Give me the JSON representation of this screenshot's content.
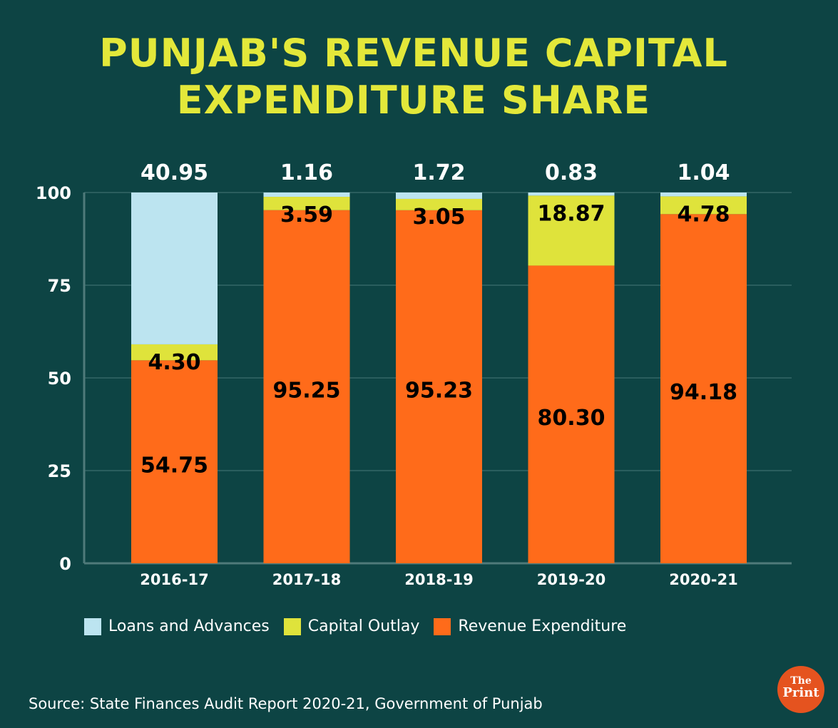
{
  "chart_data": {
    "type": "bar",
    "stacked": true,
    "title": "PUNJAB'S REVENUE CAPITAL EXPENDITURE SHARE",
    "categories": [
      "2016-17",
      "2017-18",
      "2018-19",
      "2019-20",
      "2020-21"
    ],
    "series": [
      {
        "name": "Revenue Expenditure",
        "color": "#ff6b1a",
        "values": [
          54.75,
          95.25,
          95.23,
          80.3,
          94.18
        ],
        "labels": [
          "54.75",
          "95.25",
          "95.23",
          "80.30",
          "94.18"
        ]
      },
      {
        "name": "Capital Outlay",
        "color": "#dfe33b",
        "values": [
          4.3,
          3.59,
          3.05,
          18.87,
          4.78
        ],
        "labels": [
          "4.30",
          "3.59",
          "3.05",
          "18.87",
          "4.78"
        ]
      },
      {
        "name": "Loans and Advances",
        "color": "#bce4f0",
        "values": [
          40.95,
          1.16,
          1.72,
          0.83,
          1.04
        ],
        "labels": [
          "40.95",
          "1.16",
          "1.72",
          "0.83",
          "1.04"
        ]
      }
    ],
    "ylim": [
      0,
      100
    ],
    "yticks": [
      "0",
      "25",
      "50",
      "75",
      "100"
    ],
    "grid": true,
    "legend": "bottom",
    "legend_order": [
      "Loans and Advances",
      "Capital Outlay",
      "Revenue Expenditure"
    ]
  },
  "source": "Source: State Finances Audit Report 2020-21, Government of Punjab",
  "logo": {
    "line1": "The",
    "line2": "Print"
  },
  "colors": {
    "background": "#0d4444",
    "title": "#e3e83a"
  }
}
